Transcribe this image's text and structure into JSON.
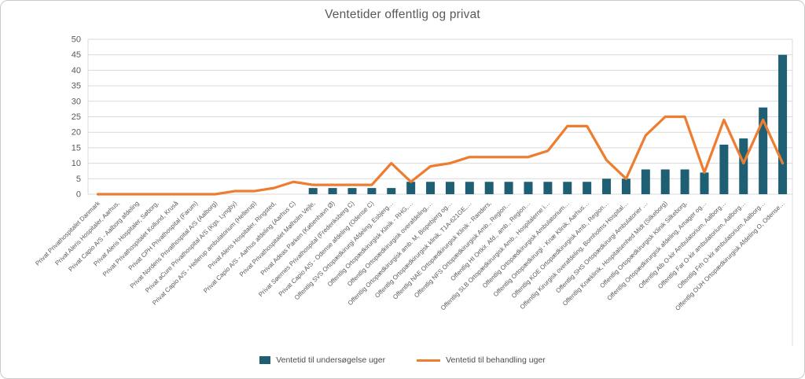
{
  "chart_data": {
    "type": "combo-bar-line",
    "title": "Ventetider offentlig og privat",
    "categories": [
      "Privat  Privathospitalet Danmark",
      "Privat  Aleris Hospitaler, Aarhus,",
      "Privat  Capio A/S - Aalborg afdeling",
      "Privat  Aleris Hospitaler, Søborg,",
      "Privat  Privathospitalet Kollund, Kruså",
      "Privat  CPH Privathospital (Farum)",
      "Privat  Nordens Privathospital A/S (Aalborg)",
      "Privat  aCure Privathospital A/S (Kgs. Lyngby)",
      "Privat  Capio A/S - Hellerup ambulatorium (Hellerup)",
      "Privat  Aleris Hospitaler, Ringsted,",
      "Privat  Capio A/S - Aarhus afdeling (Aarhus C)",
      "Privat  Privathospitalet Mølholm Vejle,",
      "Privat  Adeas Parken (København Ø)",
      "Privat  Søernes Privathospital (Frederiksberg C)",
      "Privat  Capio A/S - Odense afdeling (Odense C)",
      "Offentlig  SVS Ortopædkirurgi Afdeling, Esbjerg…",
      "Offentlig  Ortopædkirurgisk Klinik - RHG,…",
      "Offentlig  Ortopædkirurgisk overafdeling,…",
      "Offentlig  Ortopædkirurgisk amb. M, Bispebjerg og…",
      "Offentlig  Ortopædkirurgisk klinik, T1A-621GE,…",
      "Offentlig  NAE Ortopædkirurgisk Klinik - Randers,",
      "Offentlig  NFS Ortopædkirurgisk Amb., Region…",
      "Offentlig  HI Ortkir. Afd., amb., Region…",
      "Offentlig  SLB Ortopædkirurgisk Amb., Hospitalerne i…",
      "Offentlig  Ortopædkirurgisk Ambulatorium…",
      "Offentlig  Ortopædkirurgi - Knæ Klinik, Aarhus…",
      "Offentlig  KOE Ortopædkirurgisk Amb., Region…",
      "Offentlig  Kirurgisk overafdeling, Bornholms Hospital…",
      "Offentlig  SHS Ortopædkirurgi Ambulatorier …",
      "Offentlig  Knæklinik, Hospitalsenhed Midt (Silkeborg)",
      "Offentlig  Ortopædkirurgisk Klinik Silkeborg,",
      "Offentlig  Ortopædkirurgisk afdeling, Amager og…",
      "Offentlig  Alb O-kir Ambulatorium, Aalborg…",
      "Offentlig  Far O-kir ambulatorium, Aalborg…",
      "Offentlig  Frh O-kir ambulatorium, Aalborg…",
      "Offentlig  OUH Ortopædkirurgisk Afdeling O, Odense…"
    ],
    "series": [
      {
        "name": "Ventetid til undersøgelse uger",
        "type": "bar",
        "color": "#1e5f73",
        "values": [
          0,
          0,
          0,
          0,
          0,
          0,
          0,
          0,
          0,
          0,
          0,
          2,
          2,
          2,
          2,
          2,
          4,
          4,
          4,
          4,
          4,
          4,
          4,
          4,
          4,
          4,
          5,
          5,
          8,
          8,
          8,
          7,
          16,
          18,
          28,
          45
        ]
      },
      {
        "name": "Ventetid til behandling uger",
        "type": "line",
        "color": "#ed7d31",
        "values": [
          0,
          0,
          0,
          0,
          0,
          0,
          0,
          1,
          1,
          2,
          4,
          3,
          3,
          3,
          3,
          10,
          4,
          9,
          10,
          12,
          12,
          12,
          12,
          14,
          22,
          22,
          11,
          5,
          19,
          25,
          25,
          7,
          24,
          10,
          24,
          10
        ]
      }
    ],
    "ylim": [
      0,
      50
    ],
    "ytick_step": 5,
    "xlabel": "",
    "ylabel": "",
    "grid": true,
    "legend_position": "bottom"
  },
  "colors": {
    "grid": "#d9d9d9",
    "axis_text": "#595959",
    "title_text": "#595959",
    "background": "#ffffff",
    "border": "#c9c9c9"
  }
}
